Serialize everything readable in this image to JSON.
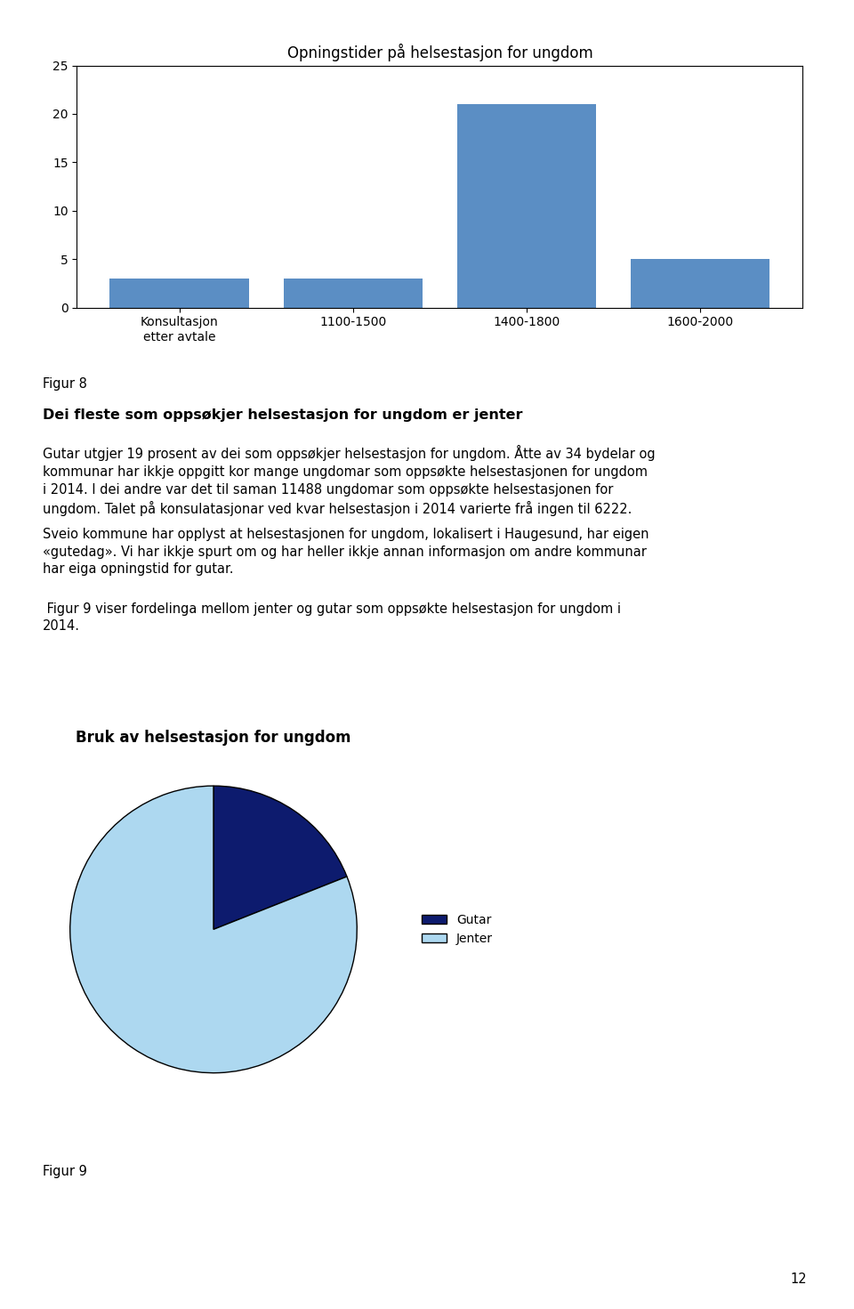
{
  "chart_data": [
    {
      "type": "bar",
      "title": "Opningstider på helsestasjon for ungdom",
      "categories": [
        "Konsultasjon\netter avtale",
        "1100-1500",
        "1400-1800",
        "1600-2000"
      ],
      "values": [
        3,
        3,
        21,
        5
      ],
      "color": "#5b8ec4",
      "ylim": [
        0,
        25
      ],
      "yticks": [
        0,
        5,
        10,
        15,
        20,
        25
      ],
      "grid": false,
      "annotations": [
        "Figur 8",
        "Dei fleste som oppsøkjer helsestasjon for ungdom er jenter",
        "Gutar utgjer 19 prosent av dei som oppsøkjer helsestasjon for ungdom. Åtte av 34 bydelar og\nkommunar har ikkje oppgitt kor mange ungdomar som oppsøkte helsestasjonen for ungdom\ni 2014. I dei andre var det til saman 11488 ungdomar som oppsøkte helsestasjonen for\nungdom. Talet på konsulatasjonar ved kvar helsestasjon i 2014 varierte frå ingen til 6222.",
        "Sveio kommune har opplyst at helsestasjonen for ungdom, lokalisert i Haugesund, har eigen\n«gutedag». Vi har ikkje spurt om og har heller ikkje annan informasjon om andre kommunar\nhar eiga opningstid for gutar.",
        " Figur 9 viser fordelinga mellom jenter og gutar som oppsøkte helsestasjon for ungdom i\n2014."
      ]
    },
    {
      "type": "pie",
      "title": "Bruk av helsestasjon for ungdom",
      "categories": [
        "Gutar",
        "Jenter"
      ],
      "values": [
        19,
        81
      ],
      "colors": [
        "#0d1b6e",
        "#add8f0"
      ],
      "legend": "center left",
      "annotations": [
        "Figur 9",
        "12"
      ]
    }
  ]
}
